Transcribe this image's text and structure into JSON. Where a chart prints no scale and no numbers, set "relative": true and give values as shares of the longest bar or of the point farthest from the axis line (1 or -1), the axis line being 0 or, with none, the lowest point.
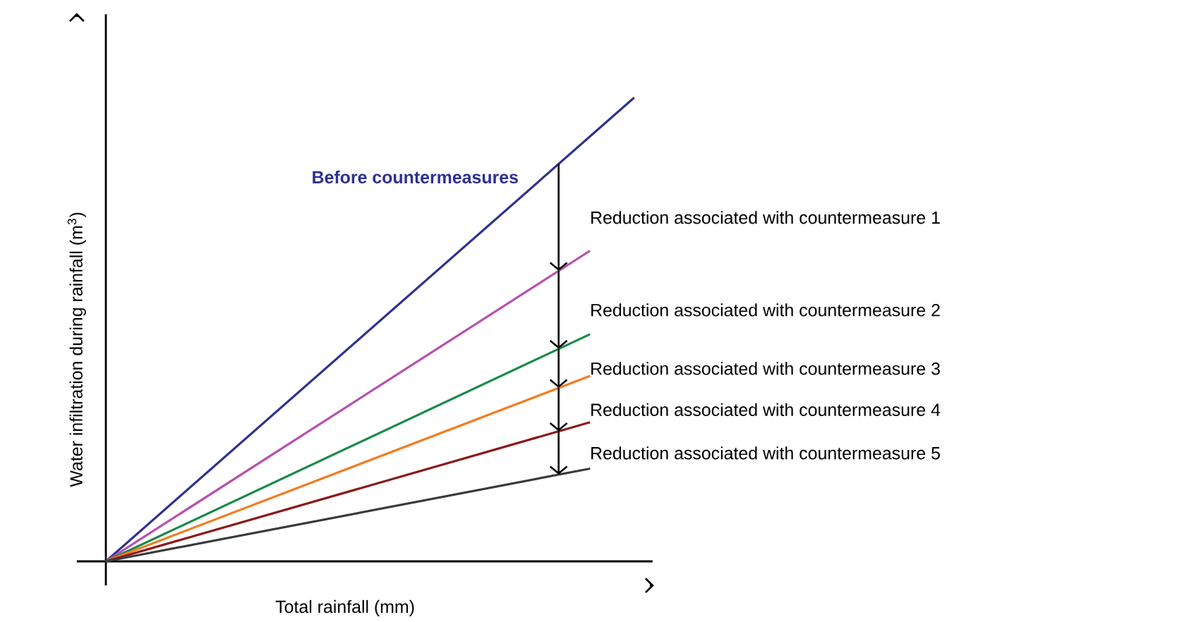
{
  "chart_data": {
    "type": "line",
    "relative": true,
    "xlabel": "Total rainfall (mm)",
    "ylabel": "Water infiltration during rainfall (m$^{3}$)",
    "categories": [
      null,
      null,
      null,
      null,
      null,
      null,
      null,
      null,
      null,
      null,
      null,
      null,
      null
    ],
    "series": [
      {
        "name": "Before countermeasures",
        "color": "#2e3192",
        "values": [
          0,
          null,
          null,
          null,
          null,
          null,
          null,
          null,
          null,
          null,
          null,
          null,
          1
        ]
      },
      {
        "color": "#b84fb0",
        "values": [
          0,
          null,
          null,
          null,
          null,
          null,
          null,
          null,
          null,
          null,
          null,
          0.67,
          null
        ]
      },
      {
        "color": "#1a8a4a",
        "values": [
          0,
          null,
          null,
          null,
          null,
          null,
          null,
          null,
          null,
          null,
          null,
          0.49,
          null
        ]
      },
      {
        "color": "#f47b20",
        "values": [
          0,
          null,
          null,
          null,
          null,
          null,
          null,
          null,
          null,
          null,
          null,
          0.4,
          null
        ]
      },
      {
        "color": "#8b1a1a",
        "values": [
          0,
          null,
          null,
          null,
          null,
          null,
          null,
          null,
          null,
          null,
          null,
          0.3,
          null
        ]
      },
      {
        "color": "#3a3a3a",
        "values": [
          0,
          null,
          null,
          null,
          null,
          null,
          null,
          null,
          null,
          null,
          null,
          0.2,
          null
        ]
      }
    ],
    "annotations": [
      "Reduction associated with countermeasure 1",
      "Reduction associated with countermeasure 2",
      "Reduction associated with countermeasure 3",
      "Reduction associated with countermeasure 4",
      "Reduction associated with countermeasure 5"
    ]
  }
}
